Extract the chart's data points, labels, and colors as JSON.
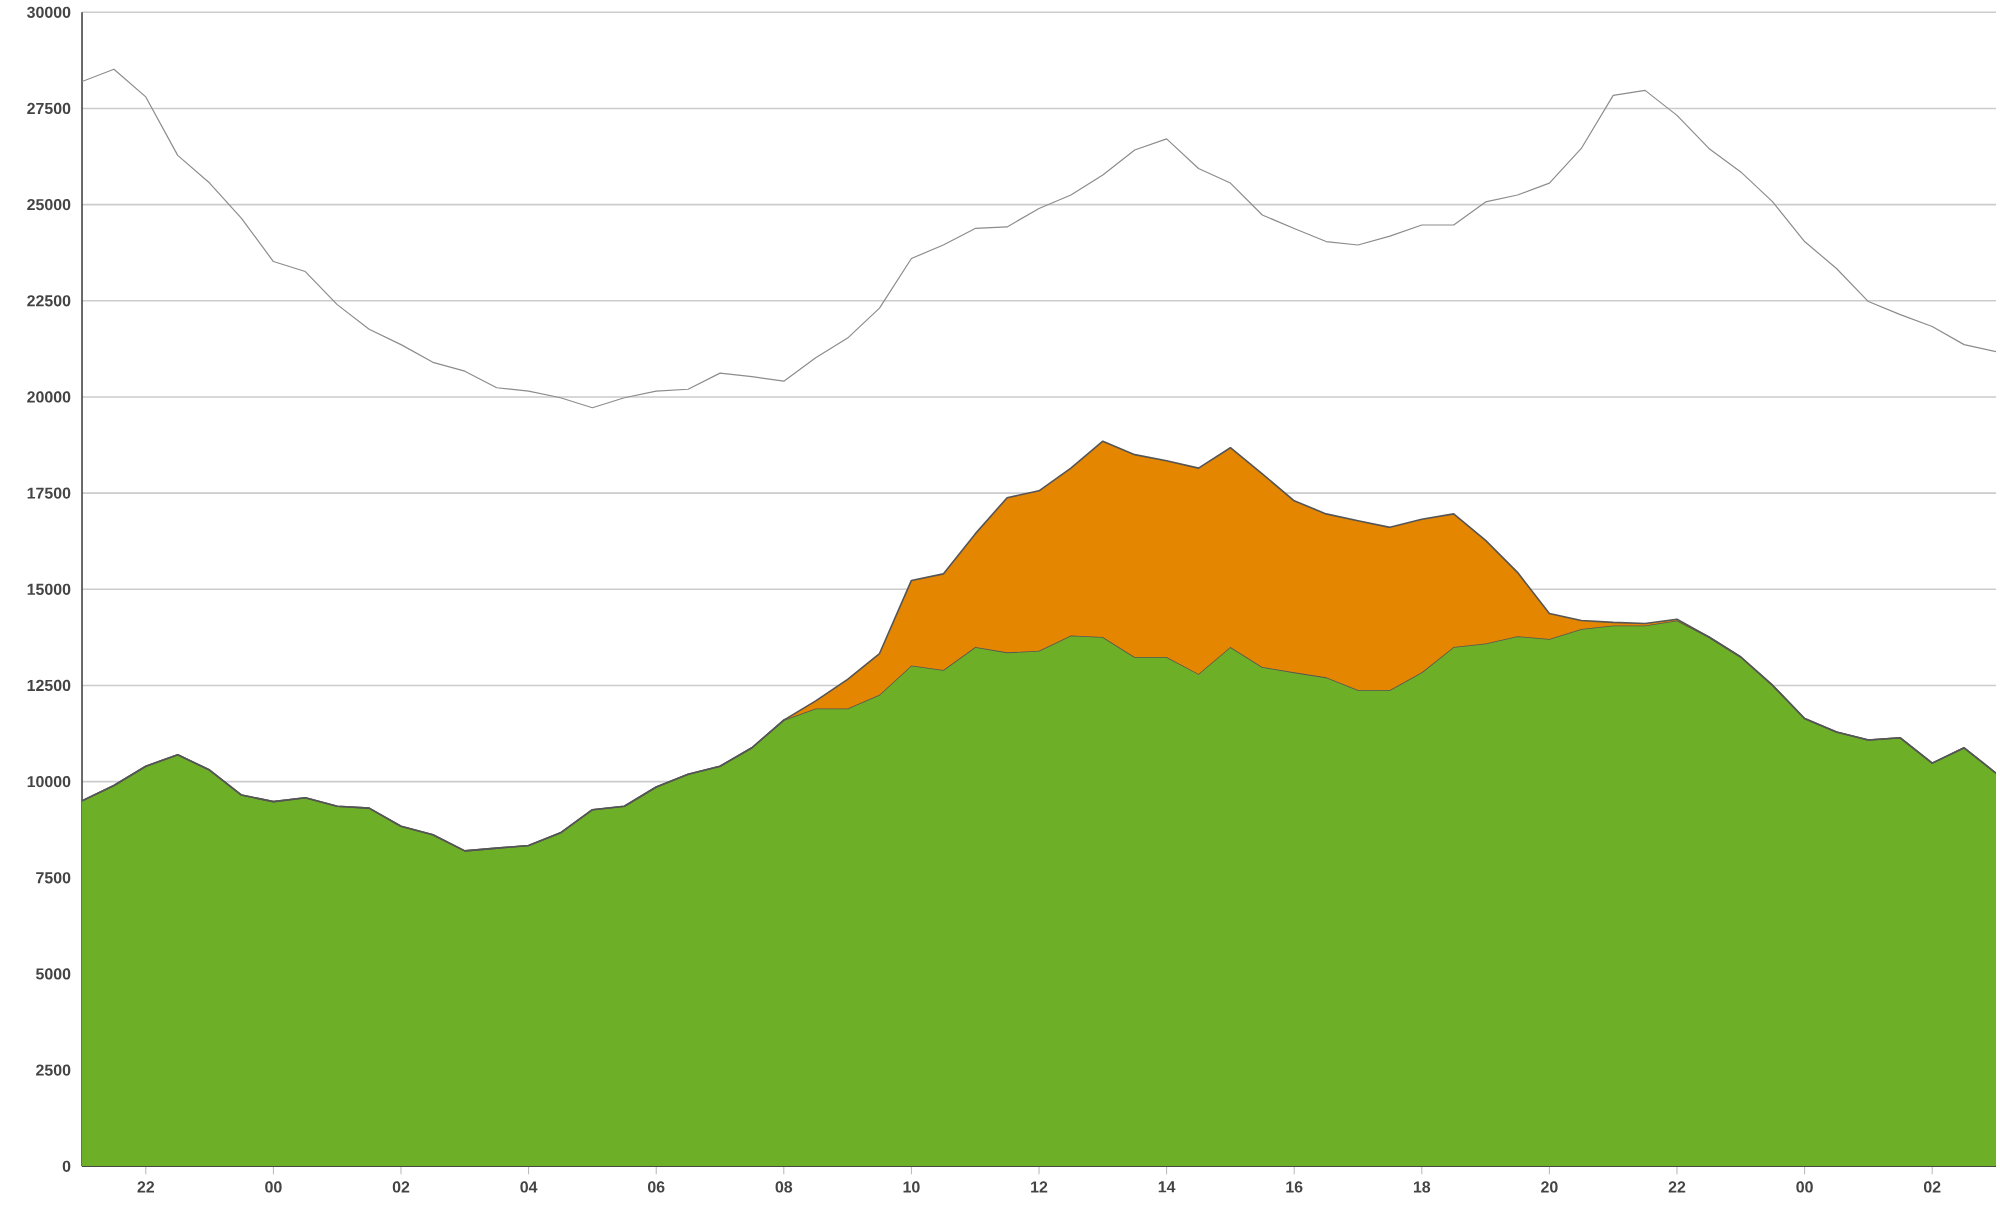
{
  "chart_data": {
    "type": "area",
    "stacked": true,
    "grid": "y",
    "ylim": [
      0,
      30000
    ],
    "yticks": [
      0,
      2500,
      5000,
      7500,
      10000,
      12500,
      15000,
      17500,
      20000,
      22500,
      25000,
      27500,
      30000
    ],
    "categories": [
      null,
      null,
      "22",
      null,
      null,
      null,
      "00",
      null,
      null,
      null,
      "02",
      null,
      null,
      null,
      "04",
      null,
      null,
      null,
      "06",
      null,
      null,
      null,
      "08",
      null,
      null,
      null,
      "10",
      null,
      null,
      null,
      "12",
      null,
      null,
      null,
      "14",
      null,
      null,
      null,
      "16",
      null,
      null,
      null,
      "18",
      null,
      null,
      null,
      "20",
      null,
      null,
      null,
      "22",
      null,
      null,
      null,
      "00",
      null,
      null,
      null,
      "02",
      null,
      null
    ],
    "series": [
      {
        "color": "#6daf27",
        "values": [
          9500,
          9900,
          10400,
          10700,
          10300,
          9650,
          9480,
          9580,
          9360,
          9310,
          8840,
          8620,
          8200,
          8270,
          8340,
          8670,
          9270,
          9360,
          9860,
          10190,
          10400,
          10880,
          11600,
          11900,
          11900,
          12260,
          13020,
          12900,
          13500,
          13360,
          13400,
          13800,
          13760,
          13240,
          13240,
          12800,
          13500,
          12980,
          12840,
          12710,
          12380,
          12380,
          12840,
          13500,
          13590,
          13780,
          13710,
          13970,
          14060,
          14060,
          14190,
          13760,
          13240,
          12500,
          11640,
          11290,
          11080,
          11140,
          10480,
          10880,
          10220
        ]
      },
      {
        "color": "#e58600",
        "values": [
          0,
          0,
          0,
          0,
          0,
          0,
          0,
          0,
          0,
          0,
          0,
          0,
          0,
          0,
          0,
          0,
          0,
          0,
          0,
          0,
          0,
          0,
          0,
          200,
          760,
          1070,
          2210,
          2500,
          2940,
          4020,
          4160,
          4350,
          5090,
          5260,
          5100,
          5350,
          5180,
          5020,
          4460,
          4250,
          4400,
          4230,
          3980,
          3460,
          2680,
          1660,
          660,
          220,
          80,
          50,
          30,
          0,
          0,
          0,
          0,
          0,
          0,
          0,
          0,
          0,
          0
        ]
      },
      {
        "type": "line",
        "color": "#8c8c8c",
        "values": [
          28200,
          28520,
          27800,
          26280,
          25560,
          24640,
          23520,
          23260,
          22400,
          21760,
          21360,
          20900,
          20670,
          20240,
          20150,
          19980,
          19720,
          19980,
          20150,
          20200,
          20620,
          20530,
          20410,
          21020,
          21530,
          22310,
          23600,
          23950,
          24380,
          24420,
          24900,
          25250,
          25770,
          26420,
          26710,
          25940,
          25560,
          24730,
          24380,
          24040,
          23950,
          24180,
          24470,
          24470,
          25070,
          25250,
          25560,
          26460,
          27840,
          27970,
          27320,
          26460,
          25850,
          25070,
          24040,
          23340,
          22480,
          22140,
          21830,
          21360,
          21180
        ]
      }
    ]
  }
}
